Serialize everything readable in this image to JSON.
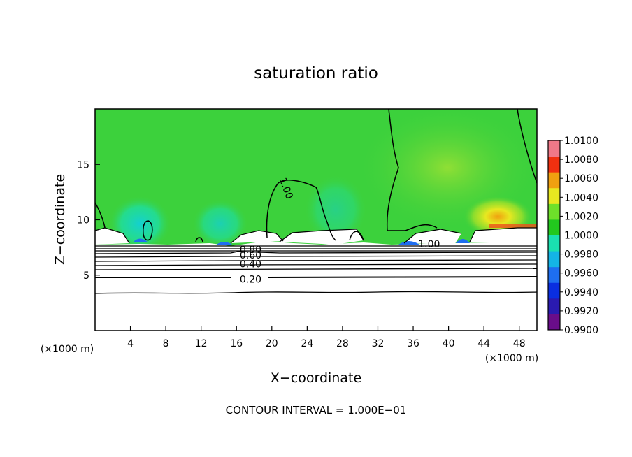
{
  "chart_data": {
    "type": "heatmap",
    "title": "saturation ratio",
    "xlabel": "X−coordinate",
    "ylabel": "Z−coordinate",
    "x_unit_label": "(×1000 m)",
    "y_unit_label": "(×1000 m)",
    "footer": "CONTOUR INTERVAL = 1.000E−01",
    "xlim": [
      0,
      50
    ],
    "ylim": [
      0,
      20
    ],
    "x_ticks": [
      4,
      8,
      12,
      16,
      20,
      24,
      28,
      32,
      36,
      40,
      44,
      48
    ],
    "y_ticks": [
      5,
      10,
      15
    ],
    "colorbar": {
      "min": 0.99,
      "max": 1.01,
      "tick_labels": [
        "0.9900",
        "0.9920",
        "0.9940",
        "0.9960",
        "0.9980",
        "1.0000",
        "1.0020",
        "1.0040",
        "1.0060",
        "1.0080",
        "1.0100"
      ],
      "colors": [
        "#6a0d8a",
        "#2a1ab0",
        "#0a2ee0",
        "#1e6ef0",
        "#14b4e6",
        "#1ae0b0",
        "#22c81e",
        "#6ee02a",
        "#e8e820",
        "#f0a010",
        "#f03010",
        "#f07888"
      ]
    },
    "background_color": "#3cd13c",
    "contour_labels": [
      {
        "text": "1.00",
        "x": 21.5,
        "y": 12.8,
        "rotate": 70
      },
      {
        "text": "1.00",
        "x": 37.8,
        "y": 7.7,
        "rotate": 0
      },
      {
        "text": "0.80",
        "x": 17.6,
        "y": 7.2,
        "rotate": 0
      },
      {
        "text": "0.60",
        "x": 17.6,
        "y": 6.7,
        "rotate": 0
      },
      {
        "text": "0.40",
        "x": 17.6,
        "y": 5.9,
        "rotate": 0
      },
      {
        "text": "0.20",
        "x": 17.6,
        "y": 4.5,
        "rotate": 0
      }
    ]
  }
}
